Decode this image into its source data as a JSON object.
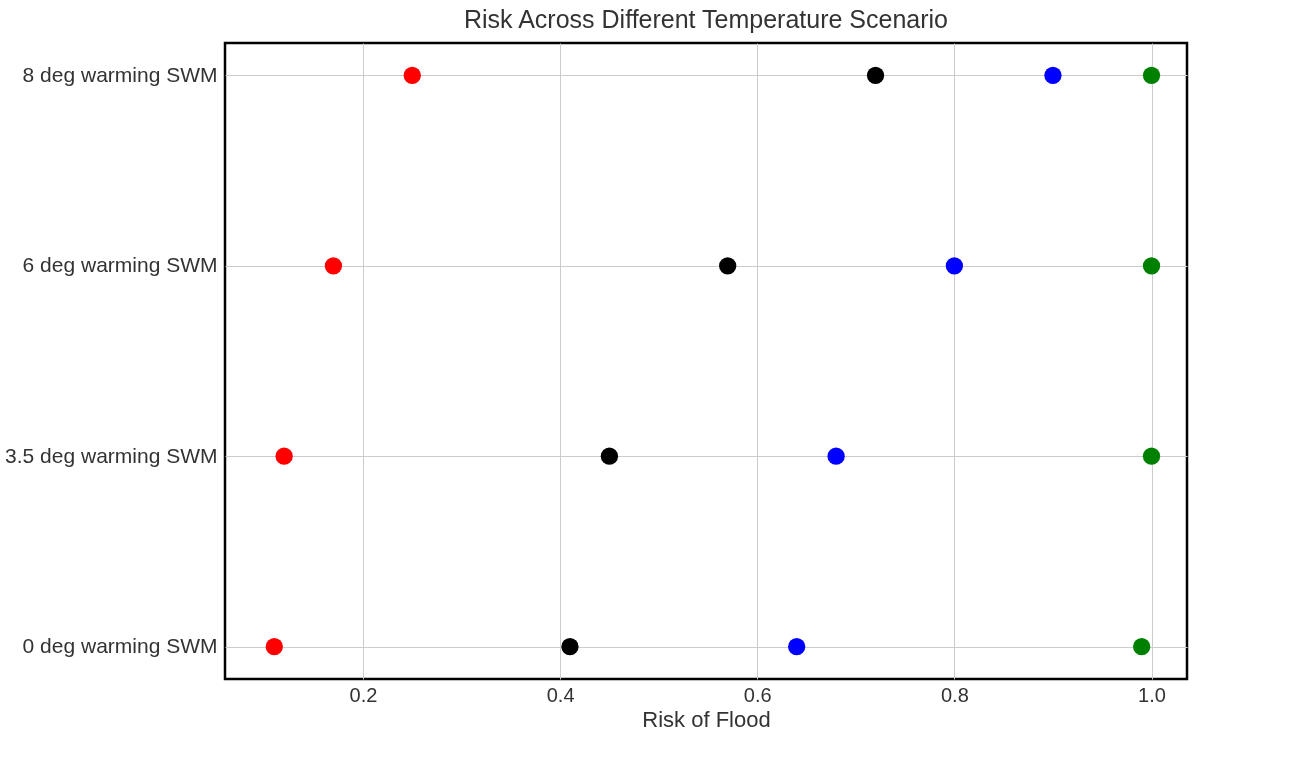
{
  "chart_data": {
    "type": "scatter",
    "orientation": "horizontal",
    "title": "Risk Across Different Temperature Scenario",
    "xlabel": "Risk of Flood",
    "categories": [
      "8 deg warming SWM",
      "6 deg warming SWM",
      "3.5 deg warming SWM",
      "0 deg warming SWM"
    ],
    "series": [
      {
        "color": "#ff0000",
        "values": [
          0.25,
          0.17,
          0.12,
          0.11
        ]
      },
      {
        "color": "#000000",
        "values": [
          0.72,
          0.57,
          0.45,
          0.41
        ]
      },
      {
        "color": "#0000ff",
        "values": [
          0.9,
          0.8,
          0.68,
          0.64
        ]
      },
      {
        "color": "#008000",
        "values": [
          1.0,
          1.0,
          1.0,
          0.99
        ]
      }
    ],
    "xlim": [
      0.06,
      1.036
    ],
    "xticks": [
      0.2,
      0.4,
      0.6,
      0.8,
      {
        "value": 1,
        "label": "1.0"
      }
    ],
    "grid": true,
    "marker": "circle",
    "legend": false
  }
}
